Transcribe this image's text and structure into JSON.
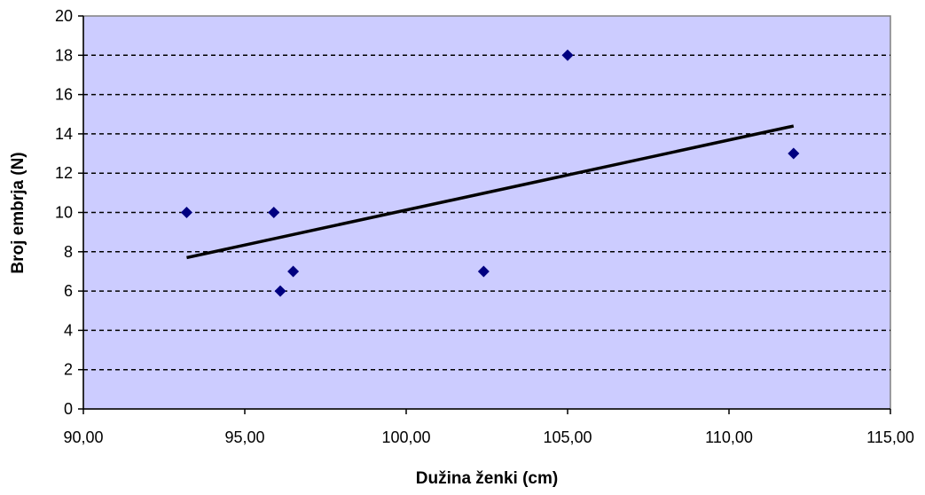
{
  "chart_data": {
    "type": "scatter",
    "xlabel": "Dužina ženki (cm)",
    "ylabel": "Broj embrja (N)",
    "xlim": [
      90,
      115
    ],
    "ylim": [
      0,
      20
    ],
    "x_ticks": [
      "90,00",
      "95,00",
      "100,00",
      "105,00",
      "110,00",
      "115,00"
    ],
    "y_ticks": [
      "0",
      "2",
      "4",
      "6",
      "8",
      "10",
      "12",
      "14",
      "16",
      "18",
      "20"
    ],
    "grid": "horizontal dashed",
    "legend": "none",
    "points": [
      {
        "x": 93.2,
        "y": 10
      },
      {
        "x": 95.9,
        "y": 10
      },
      {
        "x": 96.1,
        "y": 6
      },
      {
        "x": 96.5,
        "y": 7
      },
      {
        "x": 102.4,
        "y": 7
      },
      {
        "x": 105.0,
        "y": 18
      },
      {
        "x": 112.0,
        "y": 13
      }
    ],
    "trendline": {
      "x": [
        93.2,
        112.0
      ],
      "y": [
        7.7,
        14.4
      ]
    },
    "colors": {
      "plot_background": "#ccccff",
      "marker": "#000080",
      "trendline": "#000000",
      "gridline": "#000000",
      "plot_border": "#808080"
    }
  }
}
